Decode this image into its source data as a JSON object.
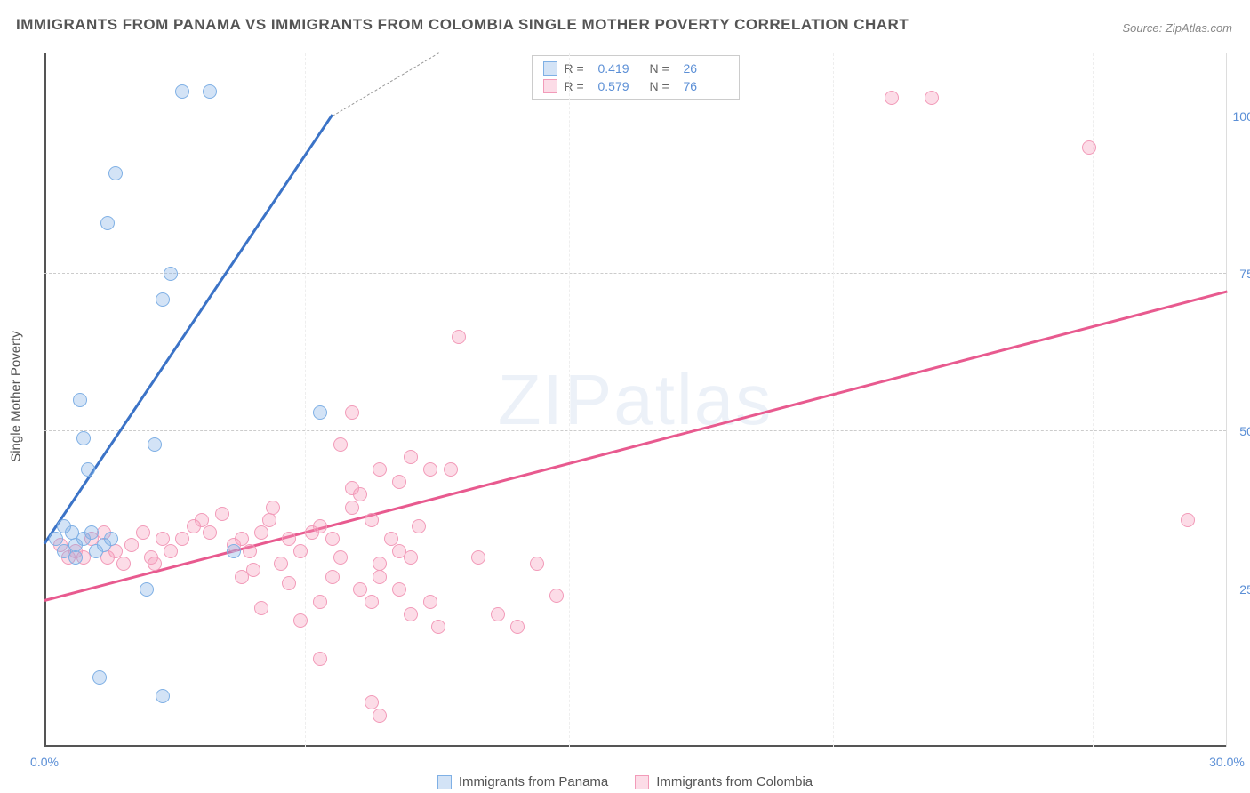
{
  "title": "IMMIGRANTS FROM PANAMA VS IMMIGRANTS FROM COLOMBIA SINGLE MOTHER POVERTY CORRELATION CHART",
  "source": "Source: ZipAtlas.com",
  "watermark": "ZIPatlas",
  "y_axis_title": "Single Mother Poverty",
  "chart": {
    "type": "scatter",
    "xlim": [
      0,
      30
    ],
    "ylim": [
      0,
      110
    ],
    "x_ticks": [
      0,
      30
    ],
    "x_tick_labels": [
      "0.0%",
      "30.0%"
    ],
    "x_minor_gridlines": [
      6.6,
      13.3,
      20,
      26.6
    ],
    "y_gridlines": [
      25,
      50,
      75,
      100
    ],
    "y_tick_labels": [
      "25.0%",
      "50.0%",
      "75.0%",
      "100.0%"
    ],
    "background_color": "#ffffff",
    "grid_color": "#cccccc",
    "axis_color": "#555555",
    "tick_label_color": "#5b8fd6",
    "marker_radius": 8,
    "trend_line_width": 3
  },
  "series": [
    {
      "id": "panama",
      "label": "Immigrants from Panama",
      "r": "0.419",
      "n": "26",
      "fill_color": "rgba(130, 175, 230, 0.35)",
      "stroke_color": "#7fb0e5",
      "line_color": "#3b73c7",
      "dashed_extension_color": "#999999",
      "trend": {
        "x1": 0,
        "y1": 32,
        "x2": 7.3,
        "y2": 100,
        "dashed_to_x": 10,
        "dashed_to_y": 125
      },
      "points": [
        [
          0.3,
          33
        ],
        [
          0.5,
          35
        ],
        [
          0.7,
          34
        ],
        [
          0.8,
          32
        ],
        [
          1.0,
          33
        ],
        [
          1.2,
          34
        ],
        [
          0.5,
          31
        ],
        [
          0.8,
          30
        ],
        [
          1.3,
          31
        ],
        [
          1.5,
          32
        ],
        [
          1.7,
          33
        ],
        [
          1.1,
          44
        ],
        [
          1.0,
          49
        ],
        [
          0.9,
          55
        ],
        [
          2.8,
          48
        ],
        [
          3.0,
          71
        ],
        [
          3.2,
          75
        ],
        [
          1.6,
          83
        ],
        [
          1.8,
          91
        ],
        [
          3.5,
          104
        ],
        [
          4.2,
          104
        ],
        [
          7.0,
          53
        ],
        [
          4.8,
          31
        ],
        [
          2.6,
          25
        ],
        [
          3.0,
          8
        ],
        [
          1.4,
          11
        ]
      ]
    },
    {
      "id": "colombia",
      "label": "Immigrants from Colombia",
      "r": "0.579",
      "n": "76",
      "fill_color": "rgba(245, 155, 185, 0.35)",
      "stroke_color": "#f29bb9",
      "line_color": "#e85a8f",
      "trend": {
        "x1": 0,
        "y1": 23,
        "x2": 30,
        "y2": 72
      },
      "points": [
        [
          0.4,
          32
        ],
        [
          0.6,
          30
        ],
        [
          0.8,
          31
        ],
        [
          1.0,
          30
        ],
        [
          1.2,
          33
        ],
        [
          1.5,
          34
        ],
        [
          1.6,
          30
        ],
        [
          1.8,
          31
        ],
        [
          2.0,
          29
        ],
        [
          2.2,
          32
        ],
        [
          2.5,
          34
        ],
        [
          2.7,
          30
        ],
        [
          2.8,
          29
        ],
        [
          3.0,
          33
        ],
        [
          3.2,
          31
        ],
        [
          3.5,
          33
        ],
        [
          3.8,
          35
        ],
        [
          4.0,
          36
        ],
        [
          4.2,
          34
        ],
        [
          4.5,
          37
        ],
        [
          4.8,
          32
        ],
        [
          5.0,
          33
        ],
        [
          5.2,
          31
        ],
        [
          5.5,
          34
        ],
        [
          5.7,
          36
        ],
        [
          5.8,
          38
        ],
        [
          6.0,
          29
        ],
        [
          6.2,
          33
        ],
        [
          6.5,
          31
        ],
        [
          6.8,
          34
        ],
        [
          7.0,
          35
        ],
        [
          7.3,
          33
        ],
        [
          7.5,
          30
        ],
        [
          7.8,
          38
        ],
        [
          8.0,
          40
        ],
        [
          8.3,
          36
        ],
        [
          8.5,
          29
        ],
        [
          8.8,
          33
        ],
        [
          9.0,
          31
        ],
        [
          9.3,
          30
        ],
        [
          9.5,
          35
        ],
        [
          5.0,
          27
        ],
        [
          5.3,
          28
        ],
        [
          5.5,
          22
        ],
        [
          6.2,
          26
        ],
        [
          6.5,
          20
        ],
        [
          7.0,
          23
        ],
        [
          7.3,
          27
        ],
        [
          8.0,
          25
        ],
        [
          8.3,
          23
        ],
        [
          8.5,
          27
        ],
        [
          9.0,
          25
        ],
        [
          9.3,
          21
        ],
        [
          9.8,
          23
        ],
        [
          10.0,
          19
        ],
        [
          11.0,
          30
        ],
        [
          11.5,
          21
        ],
        [
          12.0,
          19
        ],
        [
          12.5,
          29
        ],
        [
          13.0,
          24
        ],
        [
          7.8,
          41
        ],
        [
          8.5,
          44
        ],
        [
          9.0,
          42
        ],
        [
          9.3,
          46
        ],
        [
          9.8,
          44
        ],
        [
          10.3,
          44
        ],
        [
          7.5,
          48
        ],
        [
          7.8,
          53
        ],
        [
          10.5,
          65
        ],
        [
          7.0,
          14
        ],
        [
          8.3,
          7
        ],
        [
          8.5,
          5
        ],
        [
          21.5,
          103
        ],
        [
          22.5,
          103
        ],
        [
          26.5,
          95
        ],
        [
          29.0,
          36
        ]
      ]
    }
  ],
  "top_legend": {
    "r_label": "R =",
    "n_label": "N ="
  }
}
